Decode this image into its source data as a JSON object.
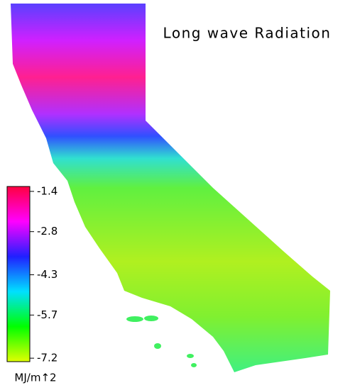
{
  "title": "Long wave Radiation",
  "colorbar": {
    "label": "MJ/m↑2",
    "lim": [
      -1.23,
      -7.32
    ],
    "ticks": [
      -1.4,
      -2.8,
      -4.3,
      -5.7,
      -7.2
    ],
    "colors": [
      "#ff0040",
      "#ff00ff",
      "#2020ff",
      "#00e0ff",
      "#00ff00",
      "#e0ff00"
    ]
  }
}
